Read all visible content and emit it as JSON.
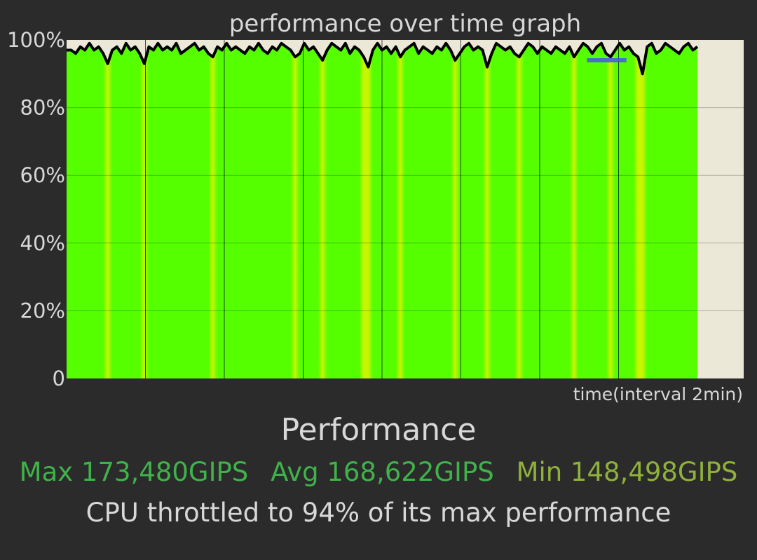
{
  "chart_data": {
    "type": "area",
    "title": "performance over time graph",
    "xlabel": "time(interval 2min)",
    "ylabel": "",
    "ylim": [
      0,
      100
    ],
    "y_ticks": [
      "0",
      "20%",
      "40%",
      "60%",
      "80%",
      "100%"
    ],
    "y_tick_values": [
      0,
      20,
      40,
      60,
      80,
      100
    ],
    "x_interval_minutes": 2,
    "x_range_minutes": [
      0,
      16
    ],
    "grid": true,
    "colors": {
      "plot_background": "#ece8d8",
      "fill_primary": "#55ff00",
      "fill_secondary": "#c8f500",
      "line": "#000000",
      "throttle_marker": "#4455ee",
      "gridline": "#000000"
    },
    "series": [
      {
        "values": [
          97,
          97,
          96,
          98,
          97,
          99,
          97,
          98,
          96,
          93,
          97,
          98,
          96,
          99,
          97,
          98,
          96,
          93,
          98,
          97,
          99,
          97,
          98,
          97,
          99,
          96,
          97,
          98,
          99,
          97,
          98,
          96,
          95,
          98,
          97,
          99,
          97,
          98,
          97,
          96,
          98,
          97,
          99,
          97,
          96,
          98,
          97,
          99,
          98,
          97,
          95,
          96,
          99,
          97,
          98,
          96,
          94,
          97,
          99,
          98,
          97,
          99,
          96,
          98,
          97,
          95,
          92,
          97,
          99,
          97,
          98,
          96,
          98,
          95,
          97,
          98,
          99,
          96,
          98,
          97,
          96,
          98,
          97,
          99,
          97,
          94,
          96,
          98,
          99,
          97,
          98,
          97,
          92,
          96,
          99,
          98,
          97,
          98,
          96,
          95,
          97,
          99,
          98,
          96,
          98,
          97,
          96,
          98,
          97,
          96,
          98,
          95,
          97,
          99,
          98,
          96,
          98,
          99,
          96,
          95,
          97,
          99,
          97,
          98,
          96,
          95,
          90,
          98,
          99,
          96,
          97,
          99,
          98,
          97,
          96,
          98,
          99,
          97,
          98
        ]
      }
    ],
    "throttle_marker": {
      "value": 94,
      "x_start_minutes": 13.2,
      "x_end_minutes": 14.2
    }
  },
  "summary": {
    "heading": "Performance",
    "max_text": "Max 173,480GIPS",
    "avg_text": "Avg 168,622GIPS",
    "min_text": "Min 148,498GIPS",
    "throttle_text": "CPU throttled to 94% of its max performance"
  }
}
